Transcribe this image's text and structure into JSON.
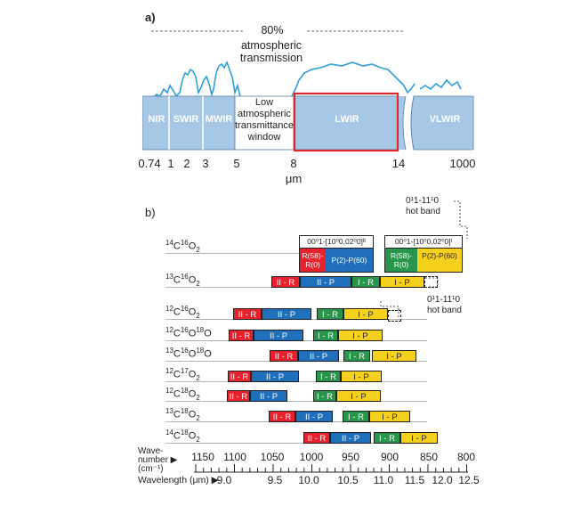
{
  "panel_a": {
    "label": "a)",
    "transmission_label": "80%",
    "transmission_caption_1": "atmospheric",
    "transmission_caption_2": "transmission",
    "bands": {
      "nir": "NIR",
      "swir": "SWIR",
      "mwir": "MWIR",
      "lwir": "LWIR",
      "vlwir": "VLWIR"
    },
    "low_window": [
      "Low",
      "atmospheric",
      "transmittance",
      "window"
    ],
    "ticks": [
      "0.74",
      "1",
      "2",
      "3",
      "5",
      "8",
      "14",
      "1000"
    ],
    "unit": "μm",
    "colors": {
      "band_fill": "#a6c8e6",
      "curve": "#2e9fd8",
      "highlight": "#e0262d"
    }
  },
  "panel_b": {
    "label": "b)",
    "hotband_top": [
      "0¹1-11¹0",
      "hot band"
    ],
    "hotband_bottom": [
      "0¹1-11¹0",
      "hot band"
    ],
    "legend_left": {
      "header": "00⁰1-[10⁰0,02⁰0]ᴵᴵ",
      "red": "R(58)-R(0)",
      "blue": "P(2)-P(60)"
    },
    "legend_right": {
      "header": "00⁰1-[10⁰0,02⁰0]ᴵ",
      "green": "R(58)-R(0)",
      "yellow": "P(2)-P(60)"
    },
    "band_labels": {
      "iir": "II - R",
      "iip": "II - P",
      "ir": "I - R",
      "ip": "I - P"
    },
    "molecules": [
      {
        "name": "14C16O2",
        "parts": [
          [
            "14",
            "C"
          ],
          [
            "16",
            "O"
          ],
          [
            "",
            "2"
          ]
        ]
      },
      {
        "name": "13C16O2"
      },
      {
        "name": "12C16O2"
      },
      {
        "name": "12C16O18O"
      },
      {
        "name": "13C16O18O"
      },
      {
        "name": "12C17O2"
      },
      {
        "name": "12C18O2"
      },
      {
        "name": "13C18O2"
      },
      {
        "name": "14C18O2"
      }
    ],
    "wavenumber_label": [
      "Wave-",
      "number ▶",
      "(cm⁻¹)"
    ],
    "wavenumber_ticks": [
      "1150",
      "1100",
      "1050",
      "1000",
      "950",
      "900",
      "850",
      "800"
    ],
    "wavelength_label": "Wavelength (μm) ▶",
    "wavelength_ticks": [
      "9.0",
      "9.5",
      "10.0",
      "10.5",
      "11.0",
      "11.5",
      "12.0",
      "12.5"
    ]
  }
}
